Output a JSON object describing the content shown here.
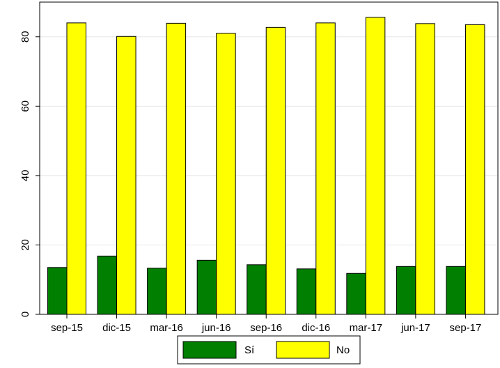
{
  "chart_data": {
    "type": "bar",
    "title": "",
    "xlabel": "",
    "ylabel": "",
    "categories": [
      "sep-15",
      "dic-15",
      "mar-16",
      "jun-16",
      "sep-16",
      "dic-16",
      "mar-17",
      "jun-17",
      "sep-17"
    ],
    "series": [
      {
        "name": "Sí",
        "values": [
          13.5,
          16.8,
          13.3,
          15.6,
          14.3,
          13.1,
          11.8,
          13.8,
          13.8
        ],
        "color": "#007f00"
      },
      {
        "name": "No",
        "values": [
          84.0,
          80.1,
          83.9,
          81.0,
          82.7,
          84.0,
          85.6,
          83.8,
          83.5
        ],
        "color": "#ffff00"
      }
    ],
    "ylim": [
      0,
      90
    ],
    "yticks": [
      0,
      20,
      40,
      60,
      80
    ],
    "grid": true,
    "legend_position": "bottom"
  }
}
